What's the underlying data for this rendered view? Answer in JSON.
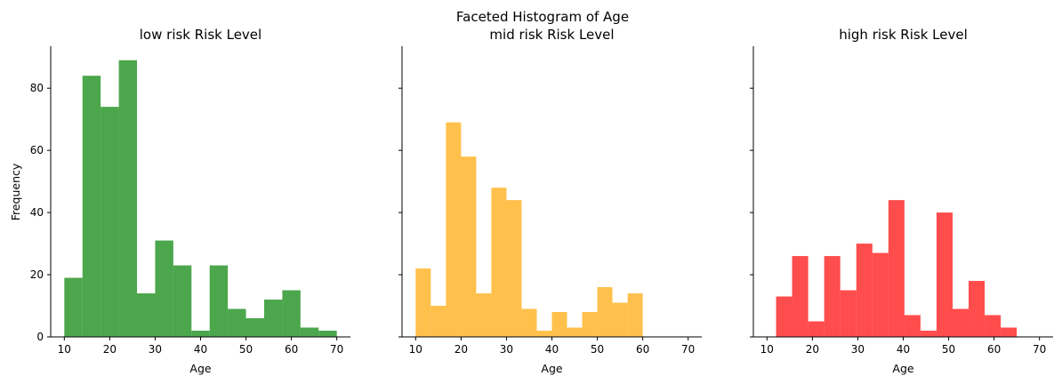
{
  "chart_data": {
    "type": "bar",
    "title": "Faceted Histogram of Age",
    "ylabel": "Frequency",
    "xlim": [
      7,
      73
    ],
    "ylim": [
      0,
      93.5
    ],
    "x_ticks": [
      10,
      20,
      30,
      40,
      50,
      60,
      70
    ],
    "y_ticks": [
      0,
      20,
      40,
      60,
      80
    ],
    "panels": [
      {
        "title": "low risk Risk Level",
        "xlabel": "Age",
        "color": "#008000",
        "bins": [
          {
            "x0": 10.0,
            "x1": 14.0,
            "count": 19
          },
          {
            "x0": 14.0,
            "x1": 18.0,
            "count": 84
          },
          {
            "x0": 18.0,
            "x1": 22.0,
            "count": 74
          },
          {
            "x0": 22.0,
            "x1": 26.0,
            "count": 89
          },
          {
            "x0": 26.0,
            "x1": 30.0,
            "count": 14
          },
          {
            "x0": 30.0,
            "x1": 34.0,
            "count": 31
          },
          {
            "x0": 34.0,
            "x1": 38.0,
            "count": 23
          },
          {
            "x0": 38.0,
            "x1": 42.0,
            "count": 2
          },
          {
            "x0": 42.0,
            "x1": 46.0,
            "count": 23
          },
          {
            "x0": 46.0,
            "x1": 50.0,
            "count": 9
          },
          {
            "x0": 50.0,
            "x1": 54.0,
            "count": 6
          },
          {
            "x0": 54.0,
            "x1": 58.0,
            "count": 12
          },
          {
            "x0": 58.0,
            "x1": 62.0,
            "count": 15
          },
          {
            "x0": 62.0,
            "x1": 66.0,
            "count": 3
          },
          {
            "x0": 66.0,
            "x1": 70.0,
            "count": 2
          }
        ]
      },
      {
        "title": "mid risk Risk Level",
        "xlabel": "Age",
        "color": "#FFA500",
        "bins": [
          {
            "x0": 10.0,
            "x1": 13.33,
            "count": 22
          },
          {
            "x0": 13.33,
            "x1": 16.67,
            "count": 10
          },
          {
            "x0": 16.67,
            "x1": 20.0,
            "count": 69
          },
          {
            "x0": 20.0,
            "x1": 23.33,
            "count": 58
          },
          {
            "x0": 23.33,
            "x1": 26.67,
            "count": 14
          },
          {
            "x0": 26.67,
            "x1": 30.0,
            "count": 48
          },
          {
            "x0": 30.0,
            "x1": 33.33,
            "count": 44
          },
          {
            "x0": 33.33,
            "x1": 36.67,
            "count": 9
          },
          {
            "x0": 36.67,
            "x1": 40.0,
            "count": 2
          },
          {
            "x0": 40.0,
            "x1": 43.33,
            "count": 8
          },
          {
            "x0": 43.33,
            "x1": 46.67,
            "count": 3
          },
          {
            "x0": 46.67,
            "x1": 50.0,
            "count": 8
          },
          {
            "x0": 50.0,
            "x1": 53.33,
            "count": 16
          },
          {
            "x0": 53.33,
            "x1": 56.67,
            "count": 11
          },
          {
            "x0": 56.67,
            "x1": 60.0,
            "count": 14
          }
        ]
      },
      {
        "title": "high risk Risk Level",
        "xlabel": "Age",
        "color": "#FF0000",
        "bins": [
          {
            "x0": 12.0,
            "x1": 15.53,
            "count": 13
          },
          {
            "x0": 15.53,
            "x1": 19.07,
            "count": 26
          },
          {
            "x0": 19.07,
            "x1": 22.6,
            "count": 5
          },
          {
            "x0": 22.6,
            "x1": 26.13,
            "count": 26
          },
          {
            "x0": 26.13,
            "x1": 29.67,
            "count": 15
          },
          {
            "x0": 29.67,
            "x1": 33.2,
            "count": 30
          },
          {
            "x0": 33.2,
            "x1": 36.73,
            "count": 27
          },
          {
            "x0": 36.73,
            "x1": 40.27,
            "count": 44
          },
          {
            "x0": 40.27,
            "x1": 43.8,
            "count": 7
          },
          {
            "x0": 43.8,
            "x1": 47.33,
            "count": 2
          },
          {
            "x0": 47.33,
            "x1": 50.87,
            "count": 40
          },
          {
            "x0": 50.87,
            "x1": 54.4,
            "count": 9
          },
          {
            "x0": 54.4,
            "x1": 57.93,
            "count": 18
          },
          {
            "x0": 57.93,
            "x1": 61.47,
            "count": 7
          },
          {
            "x0": 61.47,
            "x1": 65.0,
            "count": 3
          }
        ]
      }
    ]
  }
}
